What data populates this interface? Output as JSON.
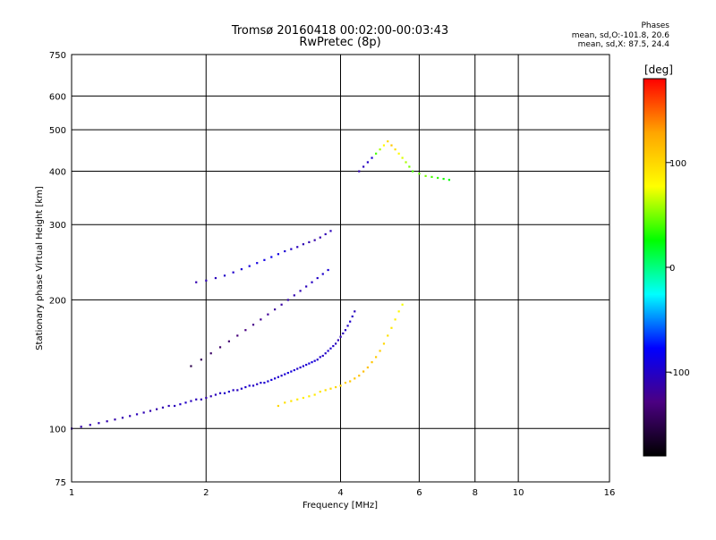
{
  "figure": {
    "title_line1": "Tromsø 20160418 00:02:00-00:03:43",
    "title_line2": "RwPretec (8p)",
    "stats": {
      "heading": "Phases",
      "line_o": "mean, sd,O:-101.8, 20.6",
      "line_x": "mean, sd,X:  87.5, 24.4"
    },
    "colorbar": {
      "label": "[deg]",
      "min": -180,
      "max": 180,
      "ticks": [
        -100,
        0,
        100
      ],
      "tick_labels": [
        "-100",
        "0",
        "100"
      ],
      "colormap": [
        "#000000",
        "#4b0082",
        "#0000ff",
        "#00ffff",
        "#00ff00",
        "#ffff00",
        "#ffa500",
        "#ff0000"
      ]
    }
  },
  "chart_data": {
    "type": "scatter",
    "xlabel": "Frequency [MHz]",
    "ylabel": "Stationary phase Virtual Height [km]",
    "xscale": "log2",
    "yscale": "log",
    "xlim": [
      1,
      16
    ],
    "ylim": [
      75,
      750
    ],
    "xticks": [
      1,
      2,
      4,
      6,
      8,
      10,
      16
    ],
    "xtick_labels": [
      "1",
      "2",
      "4",
      "6",
      "8",
      "10",
      "16"
    ],
    "yticks": [
      75,
      100,
      200,
      300,
      400,
      500,
      600,
      750
    ],
    "ytick_labels": [
      "75",
      "100",
      "200",
      "300",
      "400",
      "500",
      "600",
      "750"
    ],
    "grid": true,
    "series": [
      {
        "color_by": "phase_deg",
        "trace_note": "O-mode lower trace",
        "x": [
          1.0,
          1.05,
          1.1,
          1.15,
          1.2,
          1.25,
          1.3,
          1.35,
          1.4,
          1.45,
          1.5,
          1.55,
          1.6,
          1.65,
          1.7,
          1.75,
          1.8,
          1.85,
          1.9,
          1.95,
          2.0,
          2.05,
          2.1,
          2.15,
          2.2,
          2.25,
          2.3,
          2.35,
          2.4,
          2.45,
          2.5,
          2.55,
          2.6,
          2.65,
          2.7,
          2.75,
          2.8,
          2.85,
          2.9,
          2.95,
          3.0,
          3.05,
          3.1,
          3.15,
          3.2,
          3.25,
          3.3,
          3.35,
          3.4,
          3.45,
          3.5,
          3.55,
          3.6,
          3.65,
          3.7,
          3.75,
          3.8,
          3.85,
          3.9,
          3.95,
          4.0,
          4.05,
          4.1,
          4.15,
          4.2,
          4.25,
          4.3
        ],
        "y": [
          100,
          101,
          102,
          103,
          104,
          105,
          106,
          107,
          108,
          109,
          110,
          111,
          112,
          113,
          113,
          114,
          115,
          116,
          117,
          117,
          118,
          119,
          120,
          121,
          121,
          122,
          123,
          123,
          124,
          125,
          126,
          126,
          127,
          128,
          128,
          129,
          130,
          131,
          132,
          133,
          134,
          135,
          136,
          137,
          138,
          139,
          140,
          141,
          142,
          143,
          144,
          145,
          147,
          148,
          150,
          152,
          154,
          156,
          158,
          161,
          164,
          167,
          170,
          174,
          178,
          183,
          188
        ],
        "phase": [
          -115,
          -112,
          -110,
          -108,
          -110,
          -112,
          -110,
          -108,
          -105,
          -108,
          -110,
          -112,
          -110,
          -108,
          -105,
          -102,
          -100,
          -104,
          -106,
          -108,
          -110,
          -108,
          -105,
          -102,
          -100,
          -98,
          -102,
          -104,
          -100,
          -98,
          -96,
          -100,
          -102,
          -98,
          -96,
          -95,
          -92,
          -96,
          -98,
          -100,
          -95,
          -92,
          -90,
          -95,
          -98,
          -100,
          -97,
          -95,
          -92,
          -90,
          -95,
          -98,
          -100,
          -102,
          -100,
          -98,
          -96,
          -100,
          -104,
          -106,
          -108,
          -105,
          -102,
          -100,
          -98,
          -102,
          -104
        ]
      },
      {
        "color_by": "phase_deg",
        "trace_note": "X-mode lower trace",
        "x": [
          2.9,
          3.0,
          3.1,
          3.2,
          3.3,
          3.4,
          3.5,
          3.6,
          3.7,
          3.8,
          3.9,
          4.0,
          4.1,
          4.2,
          4.3,
          4.4,
          4.5,
          4.6,
          4.7,
          4.8,
          4.9,
          5.0,
          5.1,
          5.2,
          5.3,
          5.4,
          5.5
        ],
        "y": [
          113,
          115,
          116,
          117,
          118,
          119,
          120,
          122,
          123,
          124,
          125,
          126,
          128,
          129,
          131,
          133,
          136,
          139,
          143,
          147,
          152,
          158,
          165,
          172,
          180,
          188,
          195
        ],
        "phase": [
          100,
          95,
          92,
          90,
          88,
          86,
          90,
          92,
          95,
          98,
          100,
          102,
          105,
          108,
          110,
          112,
          115,
          112,
          110,
          108,
          105,
          100,
          95,
          90,
          85,
          80,
          75
        ]
      },
      {
        "color_by": "phase_deg",
        "trace_note": "upper O trace",
        "x": [
          1.85,
          1.95,
          2.05,
          2.15,
          2.25,
          2.35,
          2.45,
          2.55,
          2.65,
          2.75,
          2.85,
          2.95,
          3.05,
          3.15,
          3.25,
          3.35,
          3.45,
          3.55,
          3.65,
          3.75
        ],
        "y": [
          140,
          145,
          150,
          155,
          160,
          165,
          170,
          175,
          180,
          185,
          190,
          195,
          200,
          205,
          210,
          215,
          220,
          225,
          230,
          235
        ],
        "phase": [
          -150,
          -145,
          -140,
          -138,
          -135,
          -132,
          -128,
          -125,
          -122,
          -120,
          -118,
          -115,
          -112,
          -110,
          -108,
          -105,
          -102,
          -100,
          -98,
          -95
        ]
      },
      {
        "color_by": "phase_deg",
        "trace_note": "F-layer upper",
        "x": [
          1.9,
          2.0,
          2.1,
          2.2,
          2.3,
          2.4,
          2.5,
          2.6,
          2.7,
          2.8,
          2.9,
          3.0,
          3.1,
          3.2,
          3.3,
          3.4,
          3.5,
          3.6,
          3.7,
          3.8
        ],
        "y": [
          220,
          222,
          225,
          228,
          232,
          236,
          240,
          244,
          248,
          252,
          256,
          260,
          263,
          266,
          270,
          273,
          276,
          280,
          285,
          290
        ],
        "phase": [
          -110,
          -108,
          -105,
          -100,
          -98,
          -95,
          -92,
          -90,
          -88,
          -85,
          -90,
          -95,
          -100,
          -105,
          -108,
          -110,
          -112,
          -110,
          -108,
          -105
        ]
      },
      {
        "color_by": "phase_deg",
        "trace_note": "high F2",
        "x": [
          4.4,
          4.5,
          4.6,
          4.7,
          4.8,
          4.9,
          5.0,
          5.1,
          5.2,
          5.3,
          5.4,
          5.5,
          5.6,
          5.7,
          5.8,
          6.0,
          6.2,
          6.4,
          6.6,
          6.8,
          7.0
        ],
        "y": [
          400,
          410,
          420,
          430,
          440,
          450,
          460,
          470,
          460,
          450,
          440,
          430,
          420,
          410,
          400,
          395,
          390,
          388,
          386,
          384,
          382
        ],
        "phase": [
          -110,
          -105,
          -100,
          -95,
          40,
          60,
          80,
          100,
          110,
          95,
          80,
          70,
          60,
          50,
          40,
          45,
          50,
          40,
          35,
          30,
          25
        ]
      }
    ]
  }
}
